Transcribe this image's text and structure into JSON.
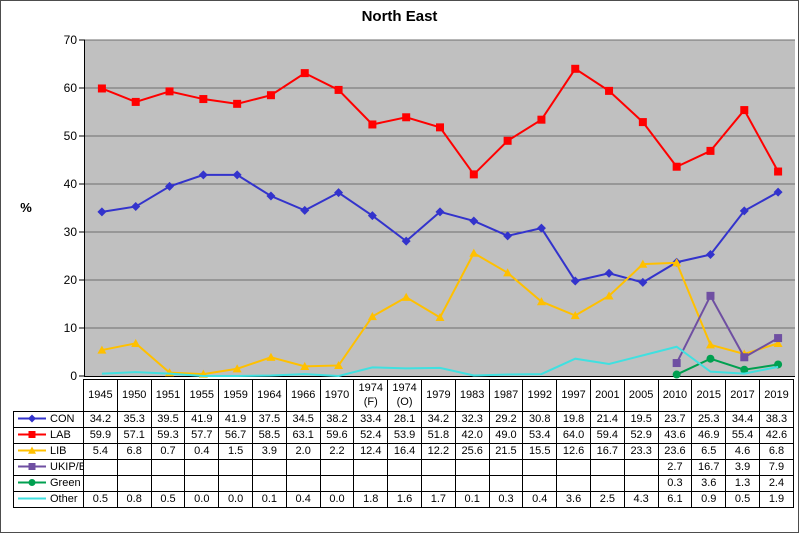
{
  "chart_data": {
    "type": "line",
    "title": "North East",
    "ylabel": "%",
    "ylim": [
      0,
      70
    ],
    "ytick_step": 10,
    "grid": true,
    "legend_position": "table-left",
    "plot_bg_color": "#c0c0c0",
    "grid_color": "#6e6e6e",
    "axis_color": "#000000",
    "categories": [
      "1945",
      "1950",
      "1951",
      "1955",
      "1959",
      "1964",
      "1966",
      "1970",
      "1974 (F)",
      "1974 (O)",
      "1979",
      "1983",
      "1987",
      "1992",
      "1997",
      "2001",
      "2005",
      "2010",
      "2015",
      "2017",
      "2019"
    ],
    "series": [
      {
        "name": "CON",
        "color": "#3333cc",
        "marker": "diamond",
        "values": [
          34.2,
          35.3,
          39.5,
          41.9,
          41.9,
          37.5,
          34.5,
          38.2,
          33.4,
          28.1,
          34.2,
          32.3,
          29.2,
          30.8,
          19.8,
          21.4,
          19.5,
          23.7,
          25.3,
          34.4,
          38.3
        ]
      },
      {
        "name": "LAB",
        "color": "#ff0000",
        "marker": "square",
        "values": [
          59.9,
          57.1,
          59.3,
          57.7,
          56.7,
          58.5,
          63.1,
          59.6,
          52.4,
          53.9,
          51.8,
          42.0,
          49.0,
          53.4,
          64.0,
          59.4,
          52.9,
          43.6,
          46.9,
          55.4,
          42.6
        ]
      },
      {
        "name": "LIB",
        "color": "#ffc000",
        "marker": "triangle",
        "values": [
          5.4,
          6.8,
          0.7,
          0.4,
          1.5,
          3.9,
          2.0,
          2.2,
          12.4,
          16.4,
          12.2,
          25.6,
          21.5,
          15.5,
          12.6,
          16.7,
          23.3,
          23.6,
          6.5,
          4.6,
          6.8
        ]
      },
      {
        "name": "UKIP/Br",
        "color": "#6f4fa2",
        "marker": "square",
        "values": [
          null,
          null,
          null,
          null,
          null,
          null,
          null,
          null,
          null,
          null,
          null,
          null,
          null,
          null,
          null,
          null,
          null,
          2.7,
          16.7,
          3.9,
          7.9
        ]
      },
      {
        "name": "Green",
        "color": "#00a050",
        "marker": "circle",
        "values": [
          null,
          null,
          null,
          null,
          null,
          null,
          null,
          null,
          null,
          null,
          null,
          null,
          null,
          null,
          null,
          null,
          null,
          0.3,
          3.6,
          1.3,
          2.4
        ]
      },
      {
        "name": "Other",
        "color": "#40e0e0",
        "marker": "none",
        "values": [
          0.5,
          0.8,
          0.5,
          0.0,
          0.0,
          0.1,
          0.4,
          0.0,
          1.8,
          1.6,
          1.7,
          0.1,
          0.3,
          0.4,
          3.6,
          2.5,
          4.3,
          6.1,
          0.9,
          0.5,
          1.9
        ]
      }
    ]
  }
}
